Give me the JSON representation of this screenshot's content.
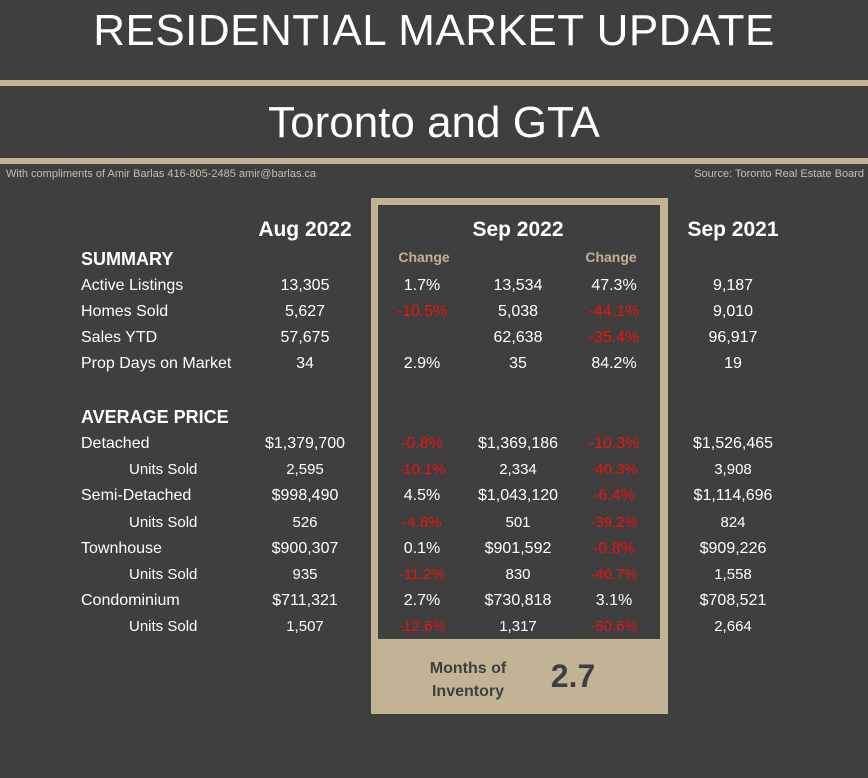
{
  "header": {
    "title": "RESIDENTIAL MARKET UPDATE",
    "subtitle": "Toronto and GTA",
    "credit": "With compliments of Amir Barlas 416-805-2485 amir@barlas.ca",
    "source": "Source: Toronto Real Estate Board"
  },
  "columns": {
    "aug": "Aug 2022",
    "sep": "Sep 2022",
    "sep_prev": "Sep 2021",
    "change1": "Change",
    "change2": "Change"
  },
  "summary": {
    "heading": "SUMMARY",
    "rows": [
      {
        "label": "Active Listings",
        "aug": "13,305",
        "mom": "1.7%",
        "sep": "13,534",
        "yoy": "47.3%",
        "prev": "9,187",
        "mom_neg": false,
        "yoy_neg": false
      },
      {
        "label": "Homes Sold",
        "aug": "5,627",
        "mom": "-10.5%",
        "sep": "5,038",
        "yoy": "-44.1%",
        "prev": "9,010",
        "mom_neg": true,
        "yoy_neg": true
      },
      {
        "label": "Sales YTD",
        "aug": "57,675",
        "mom": "",
        "sep": "62,638",
        "yoy": "-35.4%",
        "prev": "96,917",
        "mom_neg": false,
        "yoy_neg": true
      },
      {
        "label": "Prop Days on Market",
        "aug": "34",
        "mom": "2.9%",
        "sep": "35",
        "yoy": "84.2%",
        "prev": "19",
        "mom_neg": false,
        "yoy_neg": false
      }
    ]
  },
  "average_price": {
    "heading": "AVERAGE PRICE",
    "rows": [
      {
        "label": "Detached",
        "aug": "$1,379,700",
        "mom": "-0.8%",
        "sep": "$1,369,186",
        "yoy": "-10.3%",
        "prev": "$1,526,465",
        "mom_neg": true,
        "yoy_neg": true,
        "unit": false
      },
      {
        "label": "Units Sold",
        "aug": "2,595",
        "mom": "-10.1%",
        "sep": "2,334",
        "yoy": "-40.3%",
        "prev": "3,908",
        "mom_neg": true,
        "yoy_neg": true,
        "unit": true
      },
      {
        "label": "Semi-Detached",
        "aug": "$998,490",
        "mom": "4.5%",
        "sep": "$1,043,120",
        "yoy": "-6.4%",
        "prev": "$1,114,696",
        "mom_neg": false,
        "yoy_neg": true,
        "unit": false
      },
      {
        "label": "Units Sold",
        "aug": "526",
        "mom": "-4.8%",
        "sep": "501",
        "yoy": "-39.2%",
        "prev": "824",
        "mom_neg": true,
        "yoy_neg": true,
        "unit": true
      },
      {
        "label": "Townhouse",
        "aug": "$900,307",
        "mom": "0.1%",
        "sep": "$901,592",
        "yoy": "-0.8%",
        "prev": "$909,226",
        "mom_neg": false,
        "yoy_neg": true,
        "unit": false
      },
      {
        "label": "Units Sold",
        "aug": "935",
        "mom": "-11.2%",
        "sep": "830",
        "yoy": "-46.7%",
        "prev": "1,558",
        "mom_neg": true,
        "yoy_neg": true,
        "unit": true
      },
      {
        "label": "Condominium",
        "aug": "$711,321",
        "mom": "2.7%",
        "sep": "$730,818",
        "yoy": "3.1%",
        "prev": "$708,521",
        "mom_neg": false,
        "yoy_neg": false,
        "unit": false
      },
      {
        "label": "Units Sold",
        "aug": "1,507",
        "mom": "-12.6%",
        "sep": "1,317",
        "yoy": "-50.6%",
        "prev": "2,664",
        "mom_neg": true,
        "yoy_neg": true,
        "unit": true
      }
    ]
  },
  "inventory": {
    "label_line1": "Months of",
    "label_line2": "Inventory",
    "value": "2.7"
  },
  "colors": {
    "background": "#3f3f3f",
    "accent": "#c2b394",
    "negative": "#ee1111",
    "text": "#ffffff"
  }
}
